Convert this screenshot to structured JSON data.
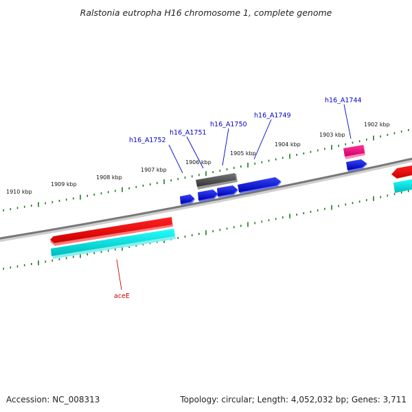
{
  "title": "Ralstonia eutropha H16 chromosome 1, complete genome",
  "footer": {
    "accession": "Accession: NC_008313",
    "summary": "Topology: circular; Length: 4,052,032 bp; Genes: 3,711"
  },
  "scale_labels": [
    "1910 kbp",
    "1909 kbp",
    "1908 kbp",
    "1907 kbp",
    "1906 kbp",
    "1905 kbp",
    "1904 kbp",
    "1903 kbp",
    "1902 kbp"
  ],
  "gene_labels": [
    {
      "text": "h16_A1752",
      "color": "#0000cc"
    },
    {
      "text": "h16_A1751",
      "color": "#0000cc"
    },
    {
      "text": "h16_A1750",
      "color": "#0000cc"
    },
    {
      "text": "h16_A1749",
      "color": "#0000cc"
    },
    {
      "text": "h16_A1744",
      "color": "#0000cc"
    },
    {
      "text": "aceE",
      "color": "#cc0000"
    }
  ],
  "colors": {
    "backbone": "#777777",
    "scale_ticks": "#1a7a1a",
    "gene_blue": "#0000dd",
    "gene_red": "#ee0000",
    "gene_cyan": "#00dddd",
    "gene_gray": "#555555",
    "gene_pink": "#ee1177"
  }
}
